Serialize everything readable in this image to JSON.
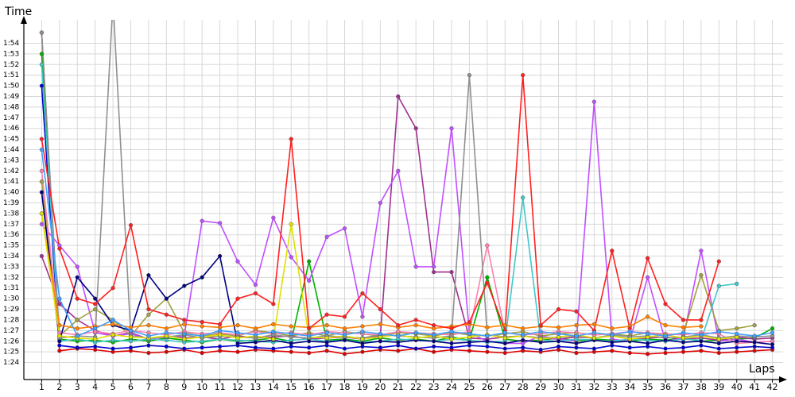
{
  "chart_data": {
    "type": "line",
    "x_label": "Laps",
    "y_label": "Time",
    "x": [
      1,
      2,
      3,
      4,
      5,
      6,
      7,
      8,
      9,
      10,
      11,
      12,
      13,
      14,
      15,
      16,
      17,
      18,
      19,
      20,
      21,
      22,
      23,
      24,
      25,
      26,
      27,
      28,
      29,
      30,
      31,
      32,
      33,
      34,
      35,
      36,
      37,
      38,
      39,
      40,
      41,
      42
    ],
    "xlim": [
      0,
      42.6
    ],
    "ylim": [
      82.4,
      116.2
    ],
    "grid": true,
    "yticks": [
      {
        "value": 84,
        "label": "1:24"
      },
      {
        "value": 85,
        "label": "1:25"
      },
      {
        "value": 86,
        "label": "1:26"
      },
      {
        "value": 87,
        "label": "1:27"
      },
      {
        "value": 88,
        "label": "1:28"
      },
      {
        "value": 89,
        "label": "1:29"
      },
      {
        "value": 90,
        "label": "1:30"
      },
      {
        "value": 91,
        "label": "1:31"
      },
      {
        "value": 92,
        "label": "1:32"
      },
      {
        "value": 93,
        "label": "1:33"
      },
      {
        "value": 94,
        "label": "1:34"
      },
      {
        "value": 95,
        "label": "1:35"
      },
      {
        "value": 96,
        "label": "1:36"
      },
      {
        "value": 97,
        "label": "1:37"
      },
      {
        "value": 98,
        "label": "1:38"
      },
      {
        "value": 99,
        "label": "1:39"
      },
      {
        "value": 100,
        "label": "1:40"
      },
      {
        "value": 101,
        "label": "1:41"
      },
      {
        "value": 102,
        "label": "1:42"
      },
      {
        "value": 103,
        "label": "1:43"
      },
      {
        "value": 104,
        "label": "1:44"
      },
      {
        "value": 105,
        "label": "1:45"
      },
      {
        "value": 106,
        "label": "1:46"
      },
      {
        "value": 107,
        "label": "1:47"
      },
      {
        "value": 108,
        "label": "1:48"
      },
      {
        "value": 109,
        "label": "1:49"
      },
      {
        "value": 110,
        "label": "1:50"
      },
      {
        "value": 111,
        "label": "1:51"
      },
      {
        "value": 112,
        "label": "1:52"
      },
      {
        "value": 113,
        "label": "1:53"
      },
      {
        "value": 114,
        "label": "1:54"
      }
    ],
    "series": [
      {
        "color": "#e00000",
        "values": [
          115,
          85.1,
          85.3,
          85.2,
          85.0,
          85.1,
          84.9,
          85.0,
          85.2,
          84.9,
          85.1,
          85.0,
          85.2,
          85.1,
          85.0,
          84.9,
          85.1,
          84.8,
          85.0,
          85.2,
          85.1,
          85.3,
          85.0,
          85.2,
          85.1,
          85.0,
          84.9,
          85.1,
          85.0,
          85.2,
          84.9,
          85.0,
          85.1,
          84.9,
          84.8,
          84.9,
          85.0,
          85.1,
          84.9,
          85.0,
          85.1,
          85.2
        ]
      },
      {
        "color": "#0000d0",
        "values": [
          110,
          85.6,
          85.4,
          85.5,
          85.3,
          85.4,
          85.6,
          85.5,
          85.3,
          85.4,
          85.5,
          85.6,
          85.4,
          85.3,
          85.5,
          85.4,
          85.6,
          85.3,
          85.5,
          85.4,
          85.6,
          85.3,
          85.5,
          85.4,
          85.6,
          85.5,
          85.3,
          85.4,
          85.2,
          85.5,
          85.4,
          85.3,
          85.6,
          85.4,
          85.5,
          85.3,
          85.4,
          85.6,
          85.3,
          85.4,
          85.5,
          85.4
        ]
      },
      {
        "color": "#00b000",
        "values": [
          113,
          86.2,
          86.0,
          86.1,
          85.9,
          86.2,
          86.0,
          86.3,
          86.1,
          85.9,
          86.2,
          86.0,
          86.1,
          86.3,
          86.0,
          93.5,
          86.1,
          86.2,
          86.0,
          86.3,
          86.1,
          86.2,
          86.0,
          86.4,
          86.1,
          92.0,
          86.2,
          86.0,
          86.1,
          86.3,
          86.0,
          86.2,
          86.1,
          86.0,
          86.2,
          86.1,
          86.3,
          86.0,
          86.1,
          86.2,
          86.3,
          87.2
        ]
      },
      {
        "color": "#a03090",
        "values": [
          94,
          89.5,
          88.0,
          87.0,
          86.5,
          86.8,
          86.2,
          86.5,
          86.3,
          86.4,
          86.2,
          86.5,
          86.3,
          86.4,
          86.5,
          86.2,
          86.3,
          86.4,
          86.2,
          86.5,
          109,
          106,
          92.5,
          92.5,
          86.3,
          86.2,
          86.4,
          86.5,
          86.3,
          86.2,
          86.4,
          86.3,
          86.5,
          86.2,
          86.3,
          86.4,
          86.2,
          86.3,
          86.1,
          86.4,
          86.2,
          86.3
        ]
      },
      {
        "color": "#c050ff",
        "values": [
          97,
          95,
          93,
          86.8,
          86.5,
          86.7,
          86.2,
          86.4,
          86.5,
          97.3,
          97.1,
          93.5,
          91.3,
          97.6,
          93.9,
          91.7,
          95.8,
          96.6,
          88.3,
          99.0,
          102.0,
          93.0,
          93.0,
          106.0,
          86.8,
          86.0,
          85.8,
          85.8,
          86.5,
          86.2,
          86.0,
          108.5,
          86.2,
          86.0,
          92.0,
          86.0,
          86.3,
          94.5,
          86.0,
          86.2,
          85.9,
          86.0
        ]
      },
      {
        "color": "#a0a040",
        "values": [
          101,
          86.5,
          88.0,
          89.0,
          88.0,
          86.5,
          88.5,
          90.0,
          86.8,
          86.5,
          86.7,
          86.5,
          87.0,
          86.8,
          86.5,
          86.8,
          86.5,
          86.9,
          86.7,
          86.5,
          86.8,
          86.7,
          86.5,
          86.8,
          86.6,
          86.5,
          86.7,
          86.9,
          86.5,
          86.7,
          86.8,
          86.6,
          86.7,
          86.5,
          86.8,
          86.6,
          86.7,
          92.2,
          87.0,
          87.2,
          87.5,
          null
        ]
      },
      {
        "color": "#40c8c8",
        "values": [
          112,
          86.0,
          86.2,
          85.9,
          86.1,
          86.0,
          86.2,
          86.1,
          85.9,
          86.0,
          86.2,
          86.1,
          86.0,
          85.9,
          86.1,
          86.2,
          86.0,
          86.1,
          85.9,
          86.0,
          86.2,
          86.1,
          86.0,
          86.2,
          86.1,
          85.9,
          86.0,
          99.5,
          86.1,
          86.0,
          86.2,
          86.1,
          86.0,
          86.2,
          86.1,
          86.0,
          86.2,
          86.1,
          91.2,
          91.4,
          null,
          null
        ]
      },
      {
        "color": "#ff80b0",
        "values": [
          102,
          86.8,
          86.6,
          86.9,
          86.7,
          87.0,
          86.8,
          86.6,
          86.9,
          86.7,
          86.8,
          86.6,
          86.9,
          86.7,
          86.8,
          86.6,
          86.9,
          86.8,
          86.7,
          86.6,
          86.9,
          86.8,
          86.7,
          86.6,
          86.9,
          95.0,
          86.8,
          86.6,
          86.7,
          86.9,
          86.8,
          86.6,
          86.7,
          86.9,
          86.8,
          86.7,
          86.6,
          86.8,
          86.7,
          85.8,
          85.9,
          86.0
        ]
      },
      {
        "color": "#909090",
        "values": [
          115,
          86.3,
          86.5,
          86.4,
          118,
          86.5,
          86.3,
          86.4,
          86.6,
          86.3,
          86.5,
          86.4,
          86.3,
          86.6,
          86.4,
          86.3,
          86.5,
          86.4,
          86.3,
          86.6,
          86.5,
          86.4,
          86.3,
          86.5,
          111,
          86.6,
          86.4,
          86.5,
          86.3,
          86.4,
          86.5,
          86.3,
          86.6,
          86.4,
          86.5,
          86.3,
          86.4,
          86.6,
          86.3,
          86.5,
          86.4,
          86.5
        ]
      },
      {
        "color": "#000080",
        "values": [
          100,
          86.0,
          92.0,
          90.0,
          87.5,
          87.0,
          92.2,
          90.0,
          91.2,
          92.0,
          94.0,
          85.8,
          85.9,
          86.1,
          85.8,
          86.0,
          85.9,
          86.1,
          85.8,
          86.0,
          85.9,
          86.1,
          86.0,
          85.8,
          85.9,
          86.0,
          85.8,
          86.1,
          85.9,
          86.0,
          85.8,
          86.1,
          85.9,
          86.0,
          85.8,
          86.1,
          85.9,
          86.0,
          85.8,
          86.0,
          85.9,
          85.7
        ]
      },
      {
        "color": "#ff8000",
        "values": [
          98,
          87.5,
          87.2,
          87.4,
          87.6,
          87.3,
          87.5,
          87.2,
          87.6,
          87.4,
          87.3,
          87.5,
          87.2,
          87.6,
          87.4,
          87.3,
          87.5,
          87.2,
          87.4,
          87.6,
          87.3,
          87.5,
          87.2,
          87.4,
          87.6,
          87.3,
          87.5,
          87.2,
          87.4,
          87.3,
          87.5,
          87.6,
          87.2,
          87.4,
          88.3,
          87.5,
          87.3,
          87.4,
          null,
          null,
          null,
          null
        ]
      },
      {
        "color": "#e0e000",
        "values": [
          98,
          86.5,
          86.3,
          86.2,
          86.6,
          86.4,
          86.3,
          86.5,
          86.2,
          86.4,
          86.6,
          86.3,
          86.5,
          86.2,
          97.0,
          86.4,
          86.3,
          86.5,
          86.2,
          86.4,
          86.6,
          86.3,
          86.5,
          86.2,
          86.4,
          86.6,
          86.3,
          86.5,
          86.2,
          86.4,
          86.6,
          86.3,
          86.5,
          86.2,
          86.4,
          86.6,
          86.3,
          86.5,
          86.2,
          86.4,
          null,
          null
        ]
      },
      {
        "color": "#ff2020",
        "values": [
          105,
          94.7,
          90.0,
          89.5,
          91.0,
          96.9,
          89.0,
          88.5,
          88.0,
          87.8,
          87.6,
          90.0,
          90.5,
          89.5,
          105,
          87.2,
          88.5,
          88.3,
          90.5,
          89.0,
          87.5,
          88.0,
          87.5,
          87.2,
          87.8,
          91.5,
          87.0,
          111,
          87.5,
          89.0,
          88.8,
          87.0,
          94.5,
          87.2,
          93.8,
          89.5,
          88.0,
          88.0,
          93.5,
          null,
          null,
          null
        ]
      },
      {
        "color": "#40a0ff",
        "values": [
          104,
          90.0,
          86.5,
          87.2,
          88.0,
          87.0,
          86.5,
          86.8,
          86.7,
          86.5,
          87.0,
          86.8,
          86.6,
          86.9,
          86.7,
          86.5,
          86.8,
          86.6,
          86.9,
          86.7,
          86.5,
          86.8,
          86.6,
          86.9,
          86.7,
          86.5,
          86.8,
          86.6,
          86.9,
          86.7,
          86.5,
          86.8,
          86.6,
          86.9,
          86.7,
          86.5,
          86.8,
          86.6,
          86.9,
          86.7,
          86.5,
          86.8
        ]
      }
    ]
  }
}
